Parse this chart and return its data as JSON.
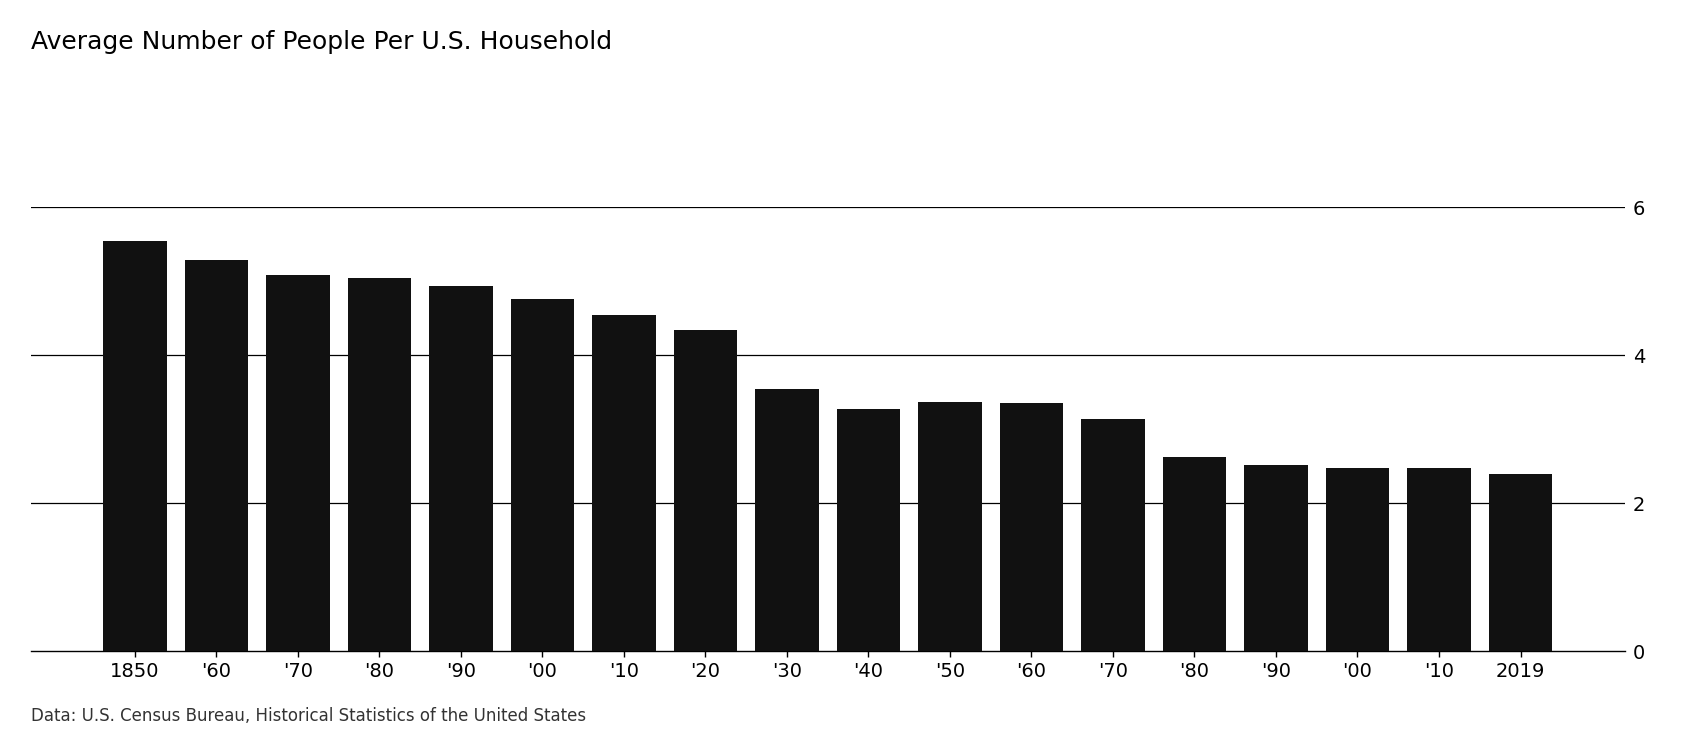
{
  "title": "Average Number of People Per U.S. Household",
  "caption": "Data: U.S. Census Bureau, Historical Statistics of the United States",
  "categories": [
    "1850",
    "'60",
    "'70",
    "'80",
    "'90",
    "'00",
    "'10",
    "'20",
    "'30",
    "'40",
    "'50",
    "'60",
    "'70",
    "'80",
    "'90",
    "'00",
    "'10",
    "2019"
  ],
  "values": [
    5.55,
    5.28,
    5.09,
    5.04,
    4.93,
    4.76,
    4.54,
    4.34,
    3.54,
    3.27,
    3.37,
    3.35,
    3.14,
    2.63,
    2.52,
    2.48,
    2.47,
    2.4
  ],
  "bar_color": "#111111",
  "background_color": "#ffffff",
  "ylim": [
    0,
    6
  ],
  "yticks": [
    0,
    2,
    4,
    6
  ],
  "title_fontsize": 18,
  "caption_fontsize": 12,
  "tick_fontsize": 14,
  "bar_width": 0.78
}
